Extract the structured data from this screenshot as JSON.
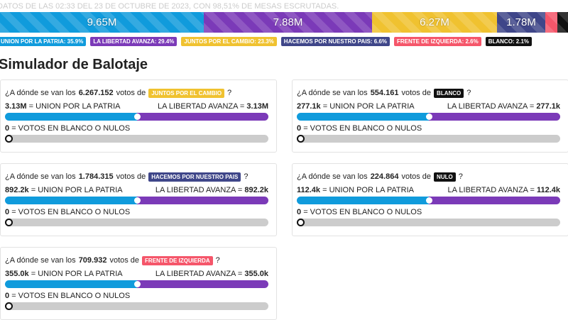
{
  "header": {
    "note": "DATOS DE LAS 02:33 DEL 23 DE OCTUBRE DE 2023, CON 98,51% DE MESAS ESCRUTADAS."
  },
  "totals": [
    {
      "label": "9.65M",
      "color": "#109bdc",
      "share": 35.9
    },
    {
      "label": "7.88M",
      "color": "#7b3ab8",
      "share": 29.4
    },
    {
      "label": "6.27M",
      "color": "#f0c230",
      "share": 23.3
    },
    {
      "label": "1.78M",
      "color": "#3f4689",
      "share": 6.6
    },
    {
      "label": "",
      "color": "#f5566a",
      "share": 2.6
    },
    {
      "label": "",
      "color": "#111111",
      "share": 2.1
    }
  ],
  "legend": [
    {
      "label": "UNION POR LA PATRIA: 35.9%",
      "color": "#109bdc"
    },
    {
      "label": "LA LIBERTAD AVANZA: 29.4%",
      "color": "#7b3ab8"
    },
    {
      "label": "JUNTOS POR EL CAMBIO: 23.3%",
      "color": "#f0c230"
    },
    {
      "label": "HACEMOS POR NUESTRO PAIS: 6.6%",
      "color": "#3f4689"
    },
    {
      "label": "FRENTE DE IZQUIERDA: 2.6%",
      "color": "#f5566a"
    },
    {
      "label": "BLANCO: 2.1%",
      "color": "#111111"
    }
  ],
  "title": "Simulador de Balotaje",
  "q_pre": "¿A dónde se van los",
  "q_mid": "votos de",
  "q_end": "?",
  "upp_label": "= UNION POR LA PATRIA",
  "lla_label": "LA LIBERTAD AVANZA =",
  "blank_label": "= VOTOS EN BLANCO O NULOS",
  "cards": [
    {
      "votes": "6.267.152",
      "party": "JUNTOS POR EL CAMBIO",
      "color": "#f0c230",
      "upp": "3.13M",
      "lla": "3.13M",
      "blank": "0",
      "split": 50
    },
    {
      "votes": "1.784.315",
      "party": "HACEMOS POR NUESTRO PAIS",
      "color": "#3f4689",
      "upp": "892.2k",
      "lla": "892.2k",
      "blank": "0",
      "split": 50
    },
    {
      "votes": "709.932",
      "party": "FRENTE DE IZQUIERDA",
      "color": "#f5566a",
      "upp": "355.0k",
      "lla": "355.0k",
      "blank": "0",
      "split": 50
    },
    {
      "votes": "554.161",
      "party": "BLANCO",
      "color": "#111111",
      "upp": "277.1k",
      "lla": "277.1k",
      "blank": "0",
      "split": 50
    },
    {
      "votes": "224.864",
      "party": "NULO",
      "color": "#111111",
      "upp": "112.4k",
      "lla": "112.4k",
      "blank": "0",
      "split": 50
    }
  ]
}
